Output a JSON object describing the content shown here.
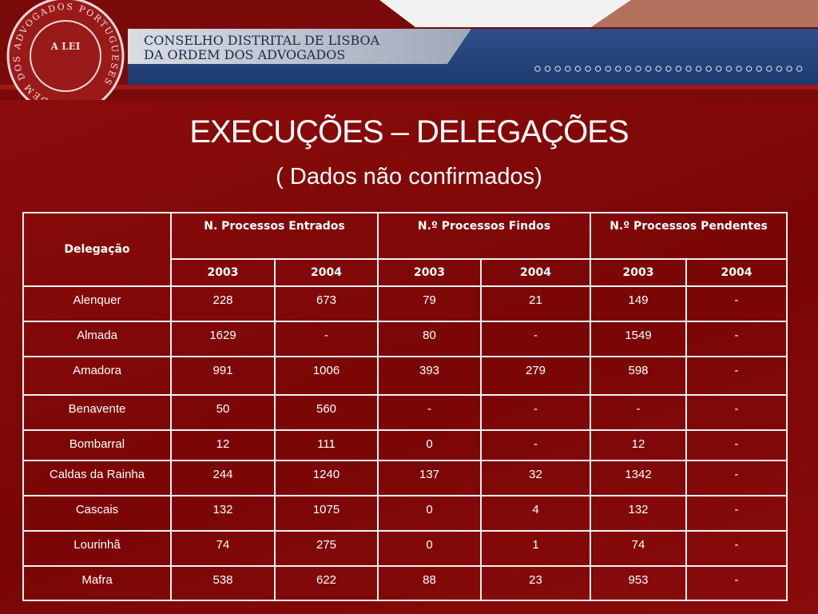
{
  "header": {
    "title_lines": [
      "CONSELHO DISTRITAL DE LISBOA",
      "DA ORDEM DOS ADVOGADOS"
    ],
    "logo_ring": "ORDEM DOS ADVOGADOS PORTUGUESES",
    "logo_center": "A LEI"
  },
  "slide": {
    "title": "EXECUÇÕES – DELEGAÇÕES",
    "subtitle": "( Dados não confirmados)"
  },
  "table": {
    "corner": "Delegação",
    "groups": [
      "N. Processos Entrados",
      "N.º Processos Findos",
      "N.º Processos Pendentes"
    ],
    "years": [
      "2003",
      "2004",
      "2003",
      "2004",
      "2003",
      "2004"
    ],
    "rows": [
      [
        "Alenquer",
        "228",
        "673",
        "79",
        "21",
        "149",
        "-"
      ],
      [
        "Almada",
        "1629",
        "-",
        "80",
        "-",
        "1549",
        "-"
      ],
      [
        "Amadora",
        "991",
        "1006",
        "393",
        "279",
        "598",
        "-"
      ],
      [
        "Benavente",
        "50",
        "560",
        "-",
        "-",
        "-",
        "-"
      ],
      [
        "Bombarral",
        "12",
        "111",
        "0",
        "-",
        "12",
        "-"
      ],
      [
        "Caldas da Rainha",
        "244",
        "1240",
        "137",
        "32",
        "1342",
        "-"
      ],
      [
        "Cascais",
        "132",
        "1075",
        "0",
        "4",
        "132",
        "-"
      ],
      [
        "Lourinhã",
        "74",
        "275",
        "0",
        "1",
        "74",
        "-"
      ],
      [
        "Mafra",
        "538",
        "622",
        "88",
        "23",
        "953",
        "-"
      ]
    ]
  }
}
